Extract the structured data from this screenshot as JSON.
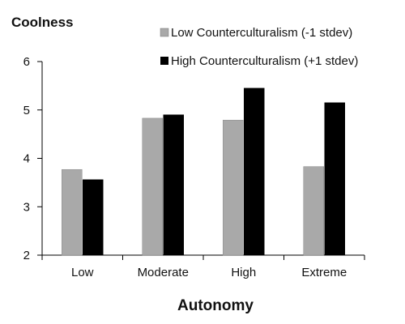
{
  "chart_data": {
    "type": "bar",
    "title": "Coolness",
    "xlabel": "Autonomy",
    "ylabel": "",
    "categories": [
      "Low",
      "Moderate",
      "High",
      "Extreme"
    ],
    "ylim": [
      2,
      6
    ],
    "yticks": [
      "2",
      "3",
      "4",
      "5",
      "6"
    ],
    "grid": false,
    "legend_position": "top-right",
    "series": [
      {
        "name": "Low Counterculturalism (-1 stdev)",
        "color": "#a9a9a9",
        "values": [
          3.77,
          4.83,
          4.79,
          3.83
        ]
      },
      {
        "name": "High Counterculturalism (+1 stdev)",
        "color": "#000000",
        "values": [
          3.56,
          4.9,
          5.45,
          5.15
        ]
      }
    ]
  }
}
